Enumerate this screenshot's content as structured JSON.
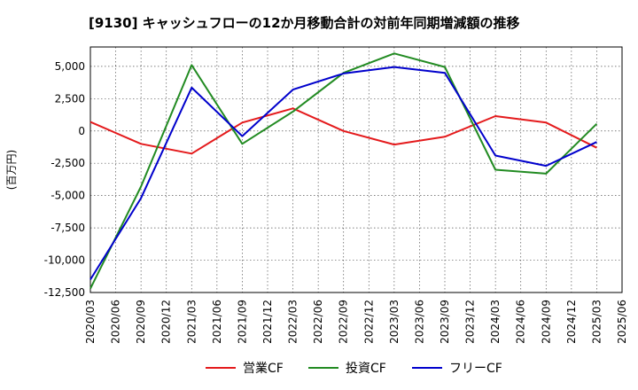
{
  "chart_data": {
    "type": "line",
    "title": "[9130]  キャッシュフローの12か月移動合計の対前年同期増減額の推移",
    "ylabel": "(百万円)",
    "xlabel": "",
    "ylim": [
      -12500,
      6500
    ],
    "yticks": [
      5000,
      2500,
      0,
      -2500,
      -5000,
      -7500,
      -10000,
      -12500
    ],
    "ytick_labels": [
      "5,000",
      "2,500",
      "0",
      "-2,500",
      "-5,000",
      "-7,500",
      "-10,000",
      "-12,500"
    ],
    "x_ticks": [
      "2020/03",
      "2020/06",
      "2020/09",
      "2020/12",
      "2021/03",
      "2021/06",
      "2021/09",
      "2021/12",
      "2022/03",
      "2022/06",
      "2022/09",
      "2022/12",
      "2023/03",
      "2023/06",
      "2023/09",
      "2023/12",
      "2024/03",
      "2024/06",
      "2024/09",
      "2024/12",
      "2025/03",
      "2025/06"
    ],
    "grid": true,
    "legend_position": "bottom",
    "series": [
      {
        "name": "営業CF",
        "color": "#e41a1c",
        "points": [
          [
            "2020/03",
            700
          ],
          [
            "2020/09",
            -1000
          ],
          [
            "2021/03",
            -1750
          ],
          [
            "2021/09",
            650
          ],
          [
            "2022/03",
            1750
          ],
          [
            "2022/09",
            0
          ],
          [
            "2023/03",
            -1050
          ],
          [
            "2023/09",
            -450
          ],
          [
            "2024/03",
            1150
          ],
          [
            "2024/09",
            650
          ],
          [
            "2025/03",
            -1300
          ]
        ]
      },
      {
        "name": "投資CF",
        "color": "#228b22",
        "points": [
          [
            "2020/03",
            -12200
          ],
          [
            "2020/09",
            -4300
          ],
          [
            "2021/03",
            5100
          ],
          [
            "2021/09",
            -1000
          ],
          [
            "2022/03",
            1500
          ],
          [
            "2022/09",
            4500
          ],
          [
            "2023/03",
            6000
          ],
          [
            "2023/09",
            4950
          ],
          [
            "2024/03",
            -3000
          ],
          [
            "2024/09",
            -3300
          ],
          [
            "2025/03",
            550
          ]
        ]
      },
      {
        "name": "フリーCF",
        "color": "#0000cc",
        "points": [
          [
            "2020/03",
            -11500
          ],
          [
            "2020/09",
            -5200
          ],
          [
            "2021/03",
            3350
          ],
          [
            "2021/09",
            -400
          ],
          [
            "2022/03",
            3200
          ],
          [
            "2022/09",
            4450
          ],
          [
            "2023/03",
            4950
          ],
          [
            "2023/09",
            4500
          ],
          [
            "2024/03",
            -1900
          ],
          [
            "2024/09",
            -2700
          ],
          [
            "2025/03",
            -850
          ]
        ]
      }
    ]
  }
}
